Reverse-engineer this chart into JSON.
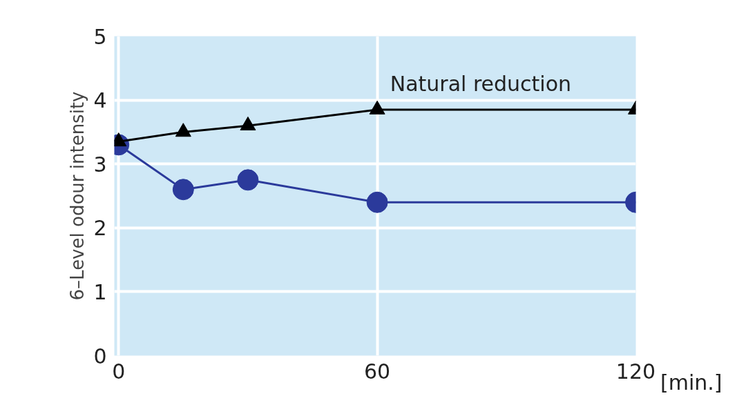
{
  "chart_data": {
    "type": "line",
    "ylabel": "6–Level odour intensity",
    "xlabel": "[min.]",
    "x": [
      0,
      15,
      30,
      60,
      120
    ],
    "series": [
      {
        "color": "#2b3a9b",
        "marker": "circle",
        "values": [
          3.3,
          2.6,
          2.75,
          2.4,
          2.4
        ]
      },
      {
        "name": "Natural reduction",
        "color": "#000000",
        "marker": "triangle",
        "values": [
          3.35,
          3.5,
          3.6,
          3.85,
          3.85
        ]
      }
    ],
    "xlim": [
      -1,
      120
    ],
    "ylim": [
      0,
      5
    ],
    "xticks": [
      0,
      60,
      120
    ],
    "yticks": [
      0,
      1,
      2,
      3,
      4,
      5
    ],
    "grid": true
  }
}
